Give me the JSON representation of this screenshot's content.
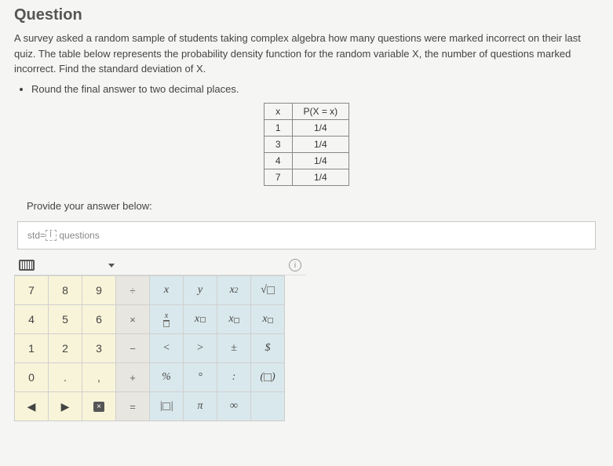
{
  "header": {
    "title": "Question"
  },
  "problem": {
    "text": "A survey asked a random sample of students taking complex algebra how many questions were marked incorrect on their last quiz. The table below represents the probability density function for the random variable X, the number of questions marked incorrect. Find the standard deviation of X.",
    "bullet": "Round the final answer to two decimal places."
  },
  "table": {
    "head_x": "x",
    "head_p": "P(X = x)",
    "rows": [
      {
        "x": "1",
        "p": "1/4"
      },
      {
        "x": "3",
        "p": "1/4"
      },
      {
        "x": "4",
        "p": "1/4"
      },
      {
        "x": "7",
        "p": "1/4"
      }
    ]
  },
  "answer": {
    "prompt": "Provide your answer below:",
    "prefix": "std=",
    "suffix": " questions"
  },
  "keypad": {
    "rows": [
      [
        {
          "t": "num",
          "v": "7"
        },
        {
          "t": "num",
          "v": "8"
        },
        {
          "t": "num",
          "v": "9"
        },
        {
          "t": "op",
          "v": "÷"
        },
        {
          "t": "sym",
          "v": "x"
        },
        {
          "t": "sym",
          "v": "y"
        },
        {
          "t": "sym",
          "v": "x²",
          "html": "x<sup style='font-size:9px'>2</sup>"
        },
        {
          "t": "sym",
          "v": "√□",
          "html": "√<span class='box'></span>"
        }
      ],
      [
        {
          "t": "num",
          "v": "4"
        },
        {
          "t": "num",
          "v": "5"
        },
        {
          "t": "num",
          "v": "6"
        },
        {
          "t": "op",
          "v": "×"
        },
        {
          "t": "sym",
          "v": "x/□",
          "html": "<span class='frac'><span class='top'>x</span><span class='box' style='border:1px solid #888;width:8px;height:8px;'></span></span>"
        },
        {
          "t": "sym",
          "v": "x□/□",
          "html": "x<span class='frac' style='display:inline-flex;margin-left:1px;'><span style='border:1px solid #888;width:7px;height:7px;'></span></span>"
        },
        {
          "t": "sym",
          "v": "x^□",
          "html": "x<sup><span class='box' style='width:7px;height:7px;'></span></sup>"
        },
        {
          "t": "sym",
          "v": "x_□",
          "html": "x<sub><span class='box' style='width:7px;height:7px;'></span></sub>"
        }
      ],
      [
        {
          "t": "num",
          "v": "1"
        },
        {
          "t": "num",
          "v": "2"
        },
        {
          "t": "num",
          "v": "3"
        },
        {
          "t": "op",
          "v": "−"
        },
        {
          "t": "sym",
          "v": "<"
        },
        {
          "t": "sym",
          "v": ">"
        },
        {
          "t": "sym",
          "v": "±"
        },
        {
          "t": "sym",
          "v": "$"
        }
      ],
      [
        {
          "t": "num",
          "v": "0"
        },
        {
          "t": "num",
          "v": "."
        },
        {
          "t": "num",
          "v": ","
        },
        {
          "t": "op",
          "v": "+"
        },
        {
          "t": "sym",
          "v": "%"
        },
        {
          "t": "sym",
          "v": "°"
        },
        {
          "t": "sym",
          "v": ":"
        },
        {
          "t": "sym",
          "v": "(□)",
          "html": "(<span class='box'></span>)"
        }
      ],
      [
        {
          "t": "num",
          "v": "◀"
        },
        {
          "t": "num",
          "v": "▶"
        },
        {
          "t": "num",
          "v": "⌫",
          "html": "<span style='background:#555;color:#fff;padding:1px 4px;border-radius:2px;font-size:10px;font-style:normal;'>×</span>"
        },
        {
          "t": "op",
          "v": "="
        },
        {
          "t": "sym",
          "v": "|□|",
          "html": "|<span class='box'></span>|"
        },
        {
          "t": "sym",
          "v": "π"
        },
        {
          "t": "sym",
          "v": "∞"
        },
        {
          "t": "sym",
          "v": ""
        }
      ]
    ]
  },
  "colors": {
    "bg": "#f5f5f3",
    "num_bg": "#f8f4d9",
    "op_bg": "#e8e6e0",
    "sym_bg": "#d9e8ec",
    "border": "#c8c8c8"
  }
}
